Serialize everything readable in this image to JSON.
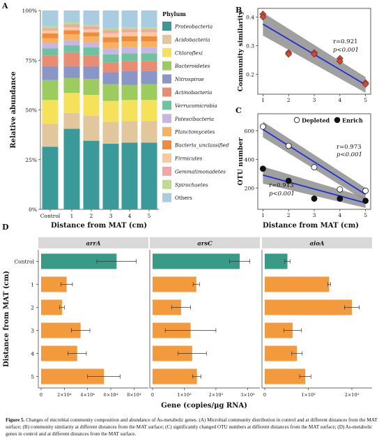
{
  "panel_labels": {
    "a": "A",
    "b": "B",
    "c": "C",
    "d": "D"
  },
  "caption": {
    "label": "Figure 5.",
    "text": "Changes of microbial community composition and abundance of As-metabolic genes. (A) Microbial community distribution in control and at different distances from the MAT surface; (B) community similarity at different distances from the MAT surface; (C) significantly changed OTU numbers at different distances from the MAT surface; (D) As-metabolic genes in control and at different distances from the MAT surface."
  },
  "chart_data": [
    {
      "id": "A",
      "type": "bar",
      "stacked": true,
      "xlabel": "Distance from MAT (cm)",
      "ylabel": "Relative abundance",
      "categories": [
        "Control",
        "1",
        "2",
        "3",
        "4",
        "5"
      ],
      "yticks": [
        "0%",
        "25%",
        "50%",
        "75%",
        "100%"
      ],
      "ylim": [
        0,
        100
      ],
      "legend_title": "Phylum",
      "legend_position": "right",
      "series": [
        {
          "name": "Proteobacteria",
          "color": "#3a9a9a",
          "values": [
            31.5,
            40.5,
            34.5,
            33.0,
            33.5,
            33.5
          ]
        },
        {
          "name": "Acidobacteria",
          "color": "#e2c79c",
          "values": [
            11.5,
            8.0,
            12.5,
            11.0,
            11.0,
            11.0
          ]
        },
        {
          "name": "Chloroflexi",
          "color": "#f5e25a",
          "values": [
            12.0,
            10.0,
            10.5,
            10.5,
            10.5,
            10.5
          ]
        },
        {
          "name": "Bacteroidetes",
          "color": "#9ccb5e",
          "values": [
            10.0,
            7.5,
            8.0,
            8.5,
            7.5,
            8.0
          ]
        },
        {
          "name": "Nitrospirae",
          "color": "#8a95c8",
          "values": [
            7.0,
            6.0,
            6.5,
            6.0,
            7.0,
            6.5
          ]
        },
        {
          "name": "Actinobacteria",
          "color": "#ea8c72",
          "values": [
            5.5,
            7.0,
            5.5,
            5.0,
            5.0,
            5.0
          ]
        },
        {
          "name": "Verrucomicrobia",
          "color": "#6fc2a0",
          "values": [
            3.5,
            3.5,
            4.0,
            4.0,
            4.0,
            4.0
          ]
        },
        {
          "name": "Patescibacteria",
          "color": "#c7b6e2",
          "values": [
            2.5,
            2.5,
            2.5,
            3.0,
            3.0,
            3.0
          ]
        },
        {
          "name": "Planctomycetes",
          "color": "#f7b15f",
          "values": [
            2.5,
            3.0,
            3.0,
            3.0,
            3.0,
            3.0
          ]
        },
        {
          "name": "Bacteria_unclassified",
          "color": "#f08a3c",
          "values": [
            2.5,
            2.0,
            2.0,
            2.5,
            2.5,
            2.5
          ]
        },
        {
          "name": "Firmicutes",
          "color": "#f7c9a0",
          "values": [
            1.5,
            1.5,
            1.5,
            2.0,
            2.0,
            2.0
          ]
        },
        {
          "name": "Gemmatimonadetes",
          "color": "#f2a7a0",
          "values": [
            1.0,
            1.5,
            1.5,
            1.5,
            1.5,
            1.5
          ]
        },
        {
          "name": "Spirochaetes",
          "color": "#bcdc8c",
          "values": [
            1.0,
            1.0,
            1.0,
            1.0,
            1.0,
            1.0
          ]
        },
        {
          "name": "Others",
          "color": "#a8cce0",
          "values": [
            8.0,
            6.0,
            7.0,
            9.0,
            8.5,
            8.5
          ]
        }
      ]
    },
    {
      "id": "B",
      "type": "scatter",
      "xlabel": "",
      "ylabel": "Community similarity",
      "xlim": [
        0.8,
        5.2
      ],
      "ylim": [
        0.13,
        0.43
      ],
      "xticks": [
        "1",
        "2",
        "3",
        "4",
        "5"
      ],
      "yticks": [
        "0.2",
        "0.3",
        "0.4"
      ],
      "points": [
        [
          1,
          0.41
        ],
        [
          1,
          0.4
        ],
        [
          2,
          0.275
        ],
        [
          2,
          0.27
        ],
        [
          3,
          0.275
        ],
        [
          3,
          0.27
        ],
        [
          4,
          0.255
        ],
        [
          4,
          0.245
        ],
        [
          5,
          0.17
        ],
        [
          5,
          0.165
        ]
      ],
      "fit": {
        "x": [
          1,
          5
        ],
        "y": [
          0.375,
          0.163
        ],
        "ci_start": [
          0.335,
          0.415
        ],
        "ci_end": [
          0.135,
          0.19
        ]
      },
      "annotation": [
        "r=0.921",
        "p<0.001"
      ],
      "colors": {
        "marker": "#d24a3a",
        "line": "#1f2fd6",
        "band": "#8f8f8f"
      }
    },
    {
      "id": "C",
      "type": "scatter",
      "xlabel": "Distance from MAT (cm)",
      "ylabel": "OTU number",
      "xlim": [
        0.8,
        5.2
      ],
      "ylim": [
        50,
        720
      ],
      "xticks": [
        "1",
        "2",
        "3",
        "4",
        "5"
      ],
      "yticks": [
        "200",
        "400",
        "600"
      ],
      "legend_position": "top-right",
      "series": [
        {
          "name": "Depleted",
          "marker": "open-circle",
          "points": [
            [
              1,
              630
            ],
            [
              2,
              495
            ],
            [
              3,
              345
            ],
            [
              4,
              190
            ],
            [
              5,
              180
            ]
          ],
          "fit": {
            "x": [
              1,
              5
            ],
            "y": [
              610,
              155
            ],
            "ci_start": [
              555,
              665
            ],
            "ci_end": [
              110,
              200
            ]
          },
          "annotation": [
            "r=0.973",
            "p<0.001"
          ]
        },
        {
          "name": "Enrich",
          "marker": "filled-circle",
          "points": [
            [
              1,
              335
            ],
            [
              2,
              250
            ],
            [
              3,
              125
            ],
            [
              4,
              125
            ],
            [
              5,
              110
            ]
          ],
          "fit": {
            "x": [
              1,
              5
            ],
            "y": [
              290,
              95
            ],
            "ci_start": [
              230,
              350
            ],
            "ci_end": [
              60,
              135
            ]
          },
          "annotation": [
            "r=0.913",
            "p<0.001"
          ]
        }
      ],
      "colors": {
        "line": "#1f2fd6",
        "band": "#8f8f8f"
      }
    },
    {
      "id": "D",
      "type": "bar",
      "orientation": "horizontal",
      "xlabel": "Gene (copies/μg RNA)",
      "ylabel": "Distance from MAT (cm)",
      "categories": [
        "Control",
        "1",
        "2",
        "3",
        "4",
        "5"
      ],
      "facets": [
        {
          "title": "arrA",
          "xlim": [
            0,
            90000
          ],
          "xticks": [
            0,
            20000,
            40000,
            60000,
            80000
          ],
          "xtick_labels": [
            "0",
            "2×10⁴",
            "4×10⁴",
            "6×10⁴",
            "8×10⁴"
          ],
          "values": [
            65000,
            22000,
            18000,
            34000,
            31000,
            54000
          ],
          "errors": [
            17000,
            5000,
            2000,
            8000,
            8000,
            14000
          ]
        },
        {
          "title": "arsC",
          "xlim": [
            0,
            3300
          ],
          "xticks": [
            0,
            1000,
            2000,
            3000
          ],
          "xtick_labels": [
            "0",
            "1×10³",
            "2×10³",
            "3×10³"
          ],
          "values": [
            2750,
            1380,
            900,
            1200,
            1250,
            1400
          ],
          "errors": [
            320,
            100,
            300,
            800,
            450,
            130
          ]
        },
        {
          "title": "aioA",
          "xlim": [
            0,
            2400
          ],
          "xticks": [
            0,
            1000,
            2000
          ],
          "xtick_labels": [
            "0",
            "1×10³",
            "2×10³"
          ],
          "values": [
            520,
            1480,
            2000,
            640,
            740,
            930
          ],
          "errors": [
            60,
            30,
            170,
            200,
            120,
            130
          ]
        }
      ],
      "colors": {
        "control": "#3a9a88",
        "treatment": "#f29a3c",
        "strip": "#d9d9d9"
      }
    }
  ]
}
